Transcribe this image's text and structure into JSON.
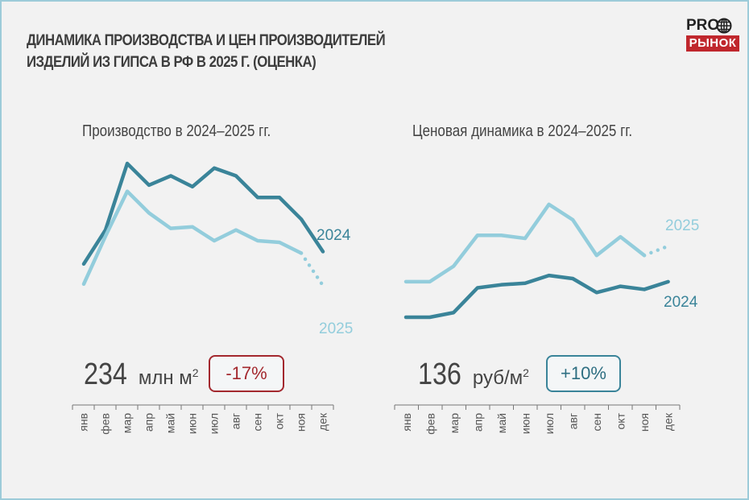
{
  "title_line1": "ДИНАМИКА ПРОИЗВОДСТВА И ЦЕН ПРОИЗВОДИТЕЛЕЙ",
  "title_line2": "ИЗДЕЛИЙ ИЗ ГИПСА В РФ В 2025 Г. (ОЦЕНКА)",
  "logo": {
    "top": "PRO",
    "bottom": "РЫНОК",
    "icon": "globe-icon"
  },
  "colors": {
    "series_2024": "#3a8499",
    "series_2025": "#93cddc",
    "negative": "#a3282e",
    "positive": "#3a8499",
    "frame": "#9dcbd9",
    "logo_red": "#c0272d"
  },
  "chart_data": [
    {
      "type": "line",
      "title": "Производство в 2024–2025 гг.",
      "categories": [
        "янв",
        "фев",
        "мар",
        "апр",
        "май",
        "июн",
        "июл",
        "авг",
        "сен",
        "окт",
        "ноя",
        "дек"
      ],
      "series": [
        {
          "name": "2024",
          "values": [
            48,
            70,
            113,
            99,
            105,
            98,
            110,
            105,
            91,
            91,
            77,
            56
          ]
        },
        {
          "name": "2025",
          "values": [
            35,
            66,
            95,
            81,
            71,
            72,
            63,
            70,
            63,
            62,
            55,
            34
          ],
          "estimated_from_index": 10
        }
      ],
      "ylim": [
        0,
        125
      ],
      "grid": false,
      "summary_value": "234",
      "summary_unit": "млн м",
      "summary_unit_sup": "2",
      "change": "-17%",
      "change_sign": "negative"
    },
    {
      "type": "line",
      "title": "Ценовая динамика в 2024–2025 гг.",
      "categories": [
        "янв",
        "фев",
        "мар",
        "апр",
        "май",
        "июн",
        "июл",
        "авг",
        "сен",
        "окт",
        "ноя",
        "дек"
      ],
      "series": [
        {
          "name": "2024",
          "values": [
            25,
            25,
            28,
            44,
            46,
            47,
            52,
            50,
            41,
            45,
            43,
            48
          ]
        },
        {
          "name": "2025",
          "values": [
            48,
            48,
            58,
            78,
            78,
            76,
            98,
            88,
            65,
            77,
            65,
            71
          ],
          "estimated_from_index": 10
        }
      ],
      "ylim": [
        0,
        125
      ],
      "grid": false,
      "summary_value": "136",
      "summary_unit": "руб/м",
      "summary_unit_sup": "2",
      "change": "+10%",
      "change_sign": "positive"
    }
  ]
}
